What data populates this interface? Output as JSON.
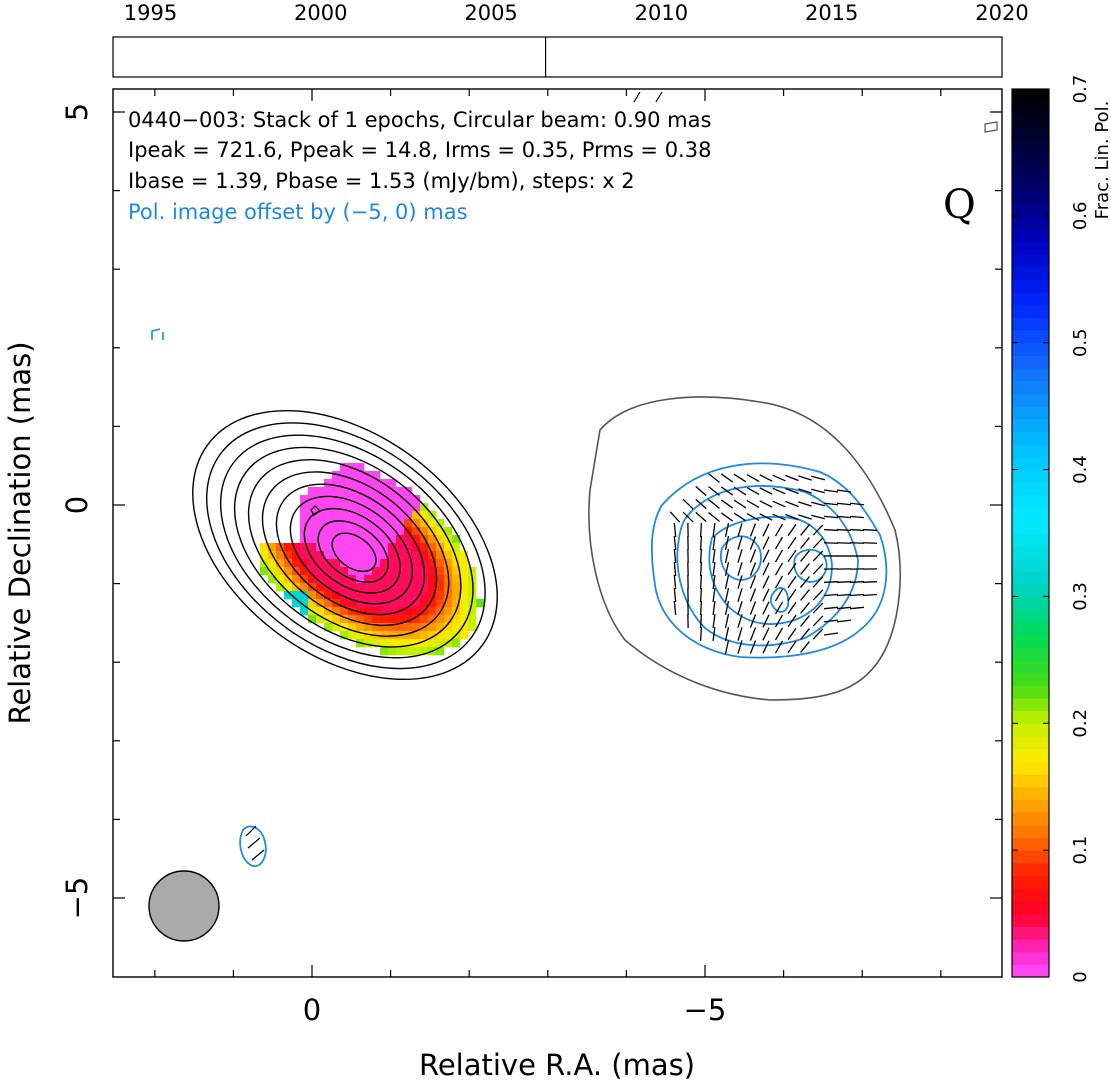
{
  "chart_data": {
    "type": "heatmap",
    "source": "0440-003",
    "header_lines": [
      "0440−003: Stack of 1 epochs, Circular beam: 0.90 mas",
      "Ipeak = 721.6, Ppeak = 14.8, Irms = 0.35, Prms = 0.38",
      "Ibase = 1.39, Pbase = 1.53 (mJy/bm), steps: x 2"
    ],
    "offset_note": "Pol. image offset by (−5, 0) mas",
    "stokes_label": "Q",
    "xlabel": "Relative R.A. (mas)",
    "ylabel": "Relative Declination (mas)",
    "xlim": [
      2.5,
      -8.8
    ],
    "ylim": [
      -6.0,
      5.3
    ],
    "x_ticks": [
      {
        "value": 0,
        "label": "0"
      },
      {
        "value": -5,
        "label": "−5"
      }
    ],
    "y_ticks": [
      {
        "value": 5,
        "label": "5"
      },
      {
        "value": 0,
        "label": "0"
      },
      {
        "value": -5,
        "label": "−5"
      }
    ],
    "timeline": {
      "ticks": [
        "1995",
        "2000",
        "2005",
        "2010",
        "2015",
        "2020"
      ],
      "tick_years": [
        1995,
        2000,
        2005,
        2010,
        2015,
        2020
      ],
      "range": [
        1993.9,
        2020.0
      ],
      "epochs": [
        2006.6
      ]
    },
    "colorbar": {
      "label": "Frac. Lin. Pol.",
      "range": [
        0,
        0.7
      ],
      "ticks": [
        "0",
        "0.1",
        "0.2",
        "0.3",
        "0.4",
        "0.5",
        "0.6",
        "0.7"
      ]
    },
    "beam": {
      "center": [
        1.6,
        -5.1
      ],
      "diameter_mas": 0.9
    },
    "total_intensity_contour_levels": 11,
    "colors": {
      "total_intensity_contours": "#000000",
      "polarized_contours": "#1e88e5",
      "outline_contour": "#555555",
      "beam_fill": "#aaaaaa",
      "evpa_ticks": "#000000"
    }
  }
}
